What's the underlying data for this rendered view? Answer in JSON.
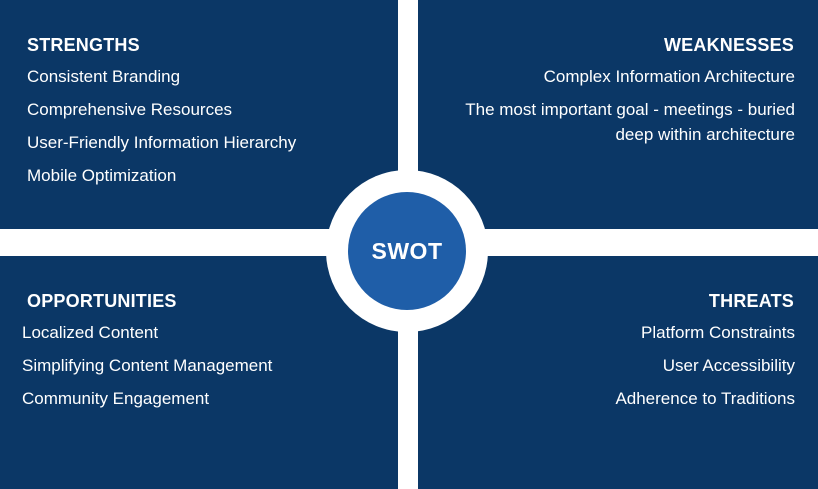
{
  "colors": {
    "quadrant": "#0b3766",
    "center": "#1f5ea8",
    "gap": "#ffffff",
    "text": "#ffffff"
  },
  "center_label": "SWOT",
  "strengths": {
    "title": "STRENGTHS",
    "items": [
      "Consistent Branding",
      "Comprehensive Resources",
      "User-Friendly Information Hierarchy",
      "Mobile Optimization"
    ]
  },
  "weaknesses": {
    "title": "WEAKNESSES",
    "items": [
      "Complex Information Architecture",
      "The most important goal - meetings - buried deep within architecture"
    ]
  },
  "opportunities": {
    "title": "OPPORTUNITIES",
    "items": [
      "Localized Content",
      "Simplifying Content Management",
      "Community Engagement"
    ]
  },
  "threats": {
    "title": "THREATS",
    "items": [
      "Platform Constraints",
      "User Accessibility",
      "Adherence to Traditions"
    ]
  }
}
